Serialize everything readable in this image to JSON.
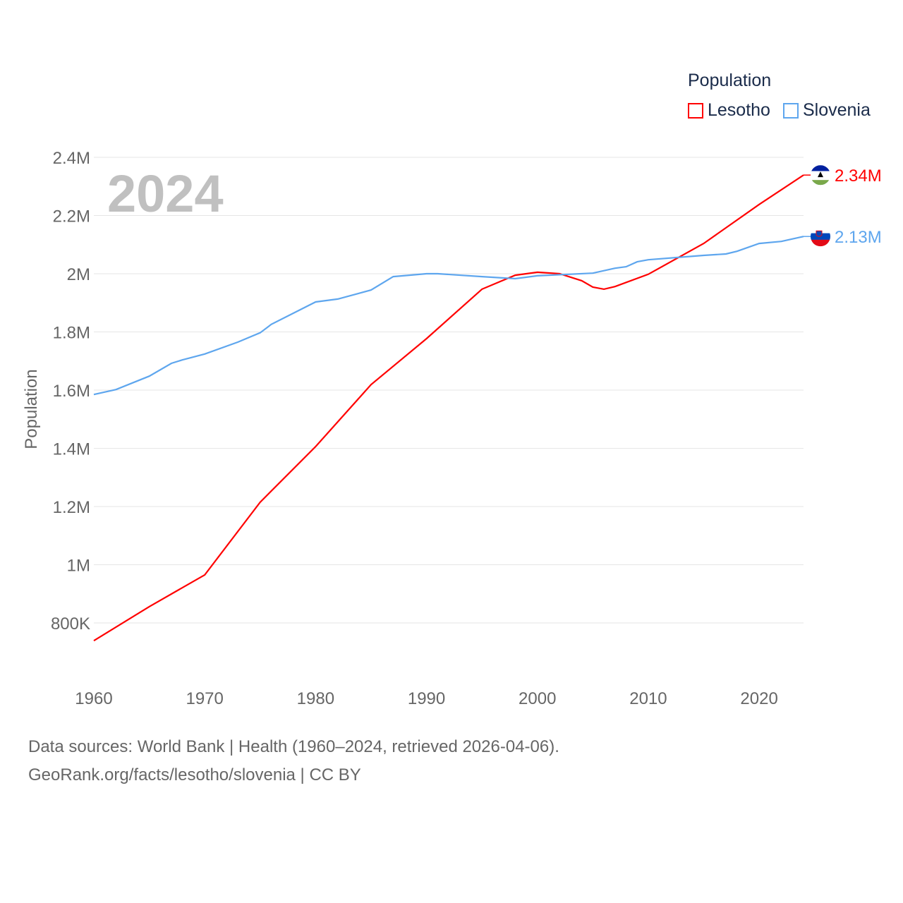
{
  "chart_data": {
    "type": "line",
    "title": "Population",
    "year_label": "2024",
    "ylabel": "Population",
    "xlabel": "",
    "ylim": [
      700000,
      2450000
    ],
    "xlim": [
      1960,
      2024
    ],
    "grid": true,
    "legend_placement": "top-right",
    "y_ticks": [
      {
        "value": 800000,
        "label": "800K"
      },
      {
        "value": 1000000,
        "label": "1M"
      },
      {
        "value": 1200000,
        "label": "1.2M"
      },
      {
        "value": 1400000,
        "label": "1.4M"
      },
      {
        "value": 1600000,
        "label": "1.6M"
      },
      {
        "value": 1800000,
        "label": "1.8M"
      },
      {
        "value": 2000000,
        "label": "2M"
      },
      {
        "value": 2200000,
        "label": "2.2M"
      },
      {
        "value": 2400000,
        "label": "2.4M"
      }
    ],
    "x_ticks": [
      1960,
      1970,
      1980,
      1990,
      2000,
      2010,
      2020
    ],
    "series": [
      {
        "name": "Lesotho",
        "color": "#ff0000",
        "end_label": "2.34M",
        "flag": "lesotho-flag",
        "points": [
          [
            1960,
            739000
          ],
          [
            1965,
            856000
          ],
          [
            1970,
            965000
          ],
          [
            1975,
            1215000
          ],
          [
            1980,
            1406000
          ],
          [
            1985,
            1619000
          ],
          [
            1990,
            1777000
          ],
          [
            1995,
            1947000
          ],
          [
            1998,
            1995000
          ],
          [
            2000,
            2005000
          ],
          [
            2002,
            2000000
          ],
          [
            2004,
            1976000
          ],
          [
            2005,
            1954000
          ],
          [
            2006,
            1947000
          ],
          [
            2007,
            1956000
          ],
          [
            2010,
            1998000
          ],
          [
            2015,
            2104000
          ],
          [
            2020,
            2238000
          ],
          [
            2024,
            2339000
          ]
        ]
      },
      {
        "name": "Slovenia",
        "color": "#5ea6ee",
        "end_label": "2.13M",
        "flag": "slovenia-flag",
        "points": [
          [
            1960,
            1585000
          ],
          [
            1962,
            1602000
          ],
          [
            1965,
            1648000
          ],
          [
            1967,
            1692000
          ],
          [
            1968,
            1704000
          ],
          [
            1970,
            1724000
          ],
          [
            1973,
            1765000
          ],
          [
            1975,
            1797000
          ],
          [
            1976,
            1826000
          ],
          [
            1980,
            1903000
          ],
          [
            1982,
            1913000
          ],
          [
            1985,
            1944000
          ],
          [
            1987,
            1990000
          ],
          [
            1990,
            2000000
          ],
          [
            1991,
            2000000
          ],
          [
            1995,
            1990000
          ],
          [
            1998,
            1983000
          ],
          [
            2000,
            1993000
          ],
          [
            2005,
            2002000
          ],
          [
            2007,
            2019000
          ],
          [
            2008,
            2024000
          ],
          [
            2009,
            2041000
          ],
          [
            2010,
            2048000
          ],
          [
            2015,
            2063000
          ],
          [
            2017,
            2068000
          ],
          [
            2018,
            2077000
          ],
          [
            2020,
            2104000
          ],
          [
            2022,
            2111000
          ],
          [
            2024,
            2128000
          ]
        ]
      }
    ]
  },
  "footer": {
    "line1": "Data sources: World Bank | Health (1960–2024, retrieved 2026-04-06).",
    "line2": "GeoRank.org/facts/lesotho/slovenia | CC BY"
  }
}
